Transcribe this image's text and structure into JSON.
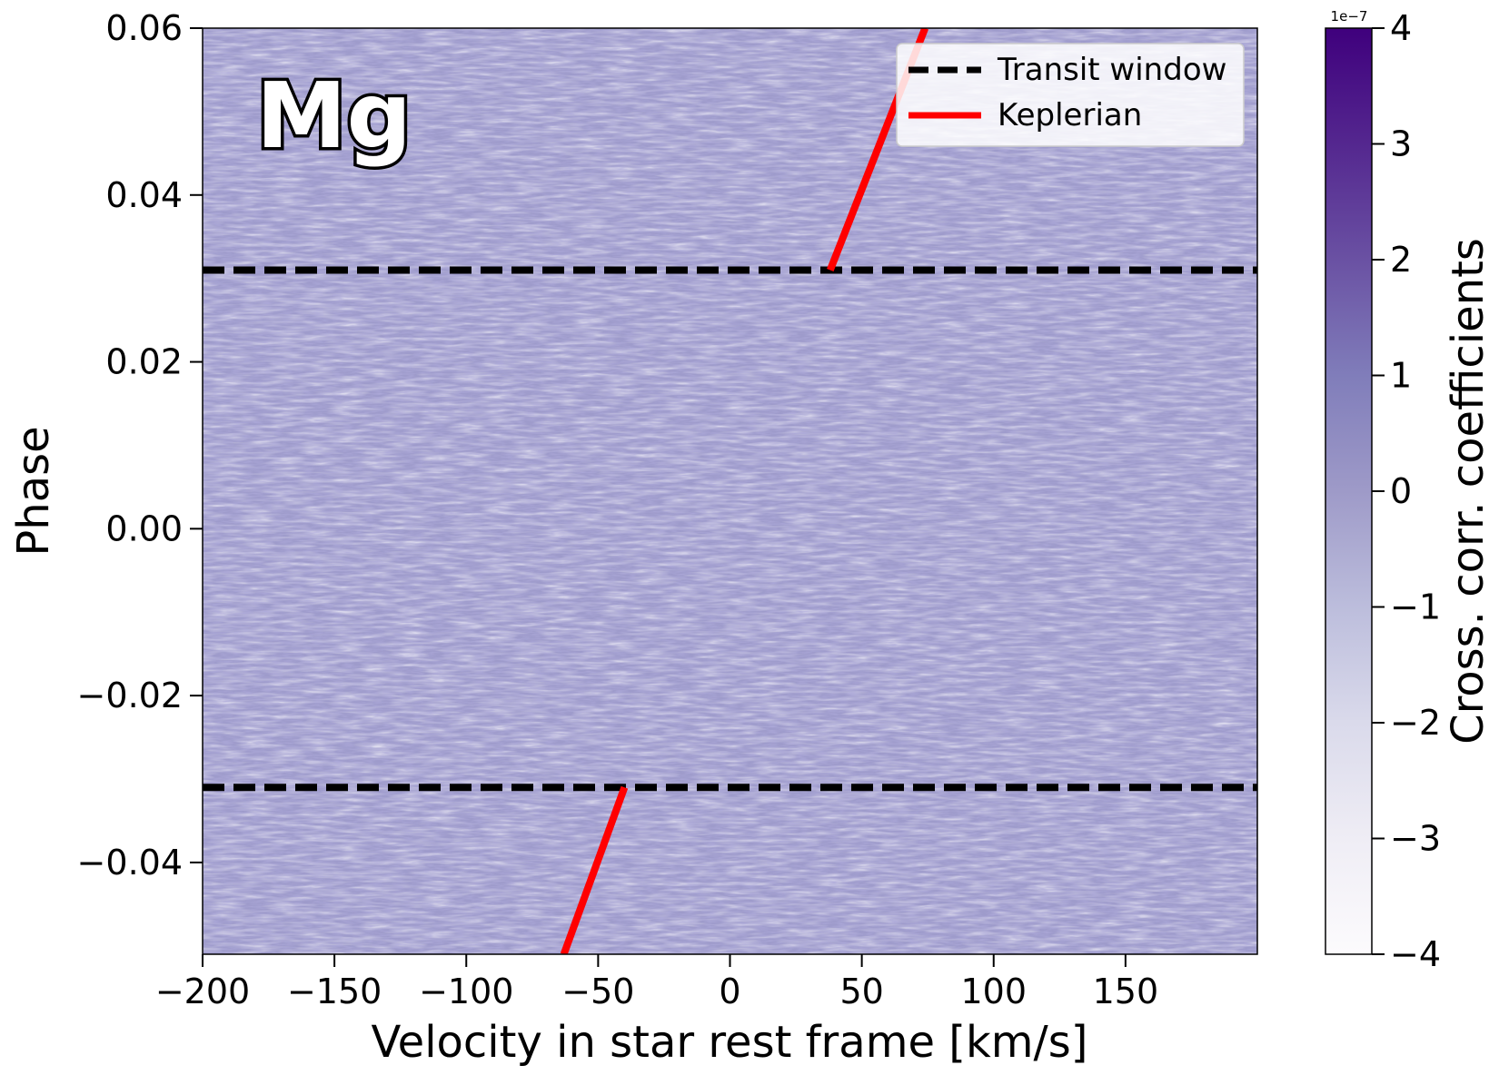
{
  "chart_data": {
    "type": "heatmap",
    "title": "",
    "panel_label": "Mg",
    "xlabel": "Velocity in star rest frame [km/s]",
    "ylabel": "Phase",
    "xlim": [
      -200,
      200
    ],
    "ylim": [
      -0.051,
      0.06
    ],
    "xticks": [
      -200,
      -150,
      -100,
      -50,
      0,
      50,
      100,
      150
    ],
    "xtick_labels": [
      "−200",
      "−150",
      "−100",
      "−50",
      "0",
      "50",
      "100",
      "150"
    ],
    "yticks": [
      -0.04,
      -0.02,
      0.0,
      0.02,
      0.04,
      0.06
    ],
    "ytick_labels": [
      "−0.04",
      "−0.02",
      "0.00",
      "0.02",
      "0.04",
      "0.06"
    ],
    "heatmap": {
      "colormap": "Purples",
      "description_values": "noise-like cross-correlation map, no clear signal",
      "value_range": [
        -4e-07,
        4e-07
      ]
    },
    "colorbar": {
      "label": "Cross. corr. coefficients",
      "multiplier": "1e−7",
      "range": [
        -4,
        4
      ],
      "ticks": [
        -4,
        -3,
        -2,
        -1,
        0,
        1,
        2,
        3,
        4
      ],
      "tick_labels": [
        "−4",
        "−3",
        "−2",
        "−1",
        "0",
        "1",
        "2",
        "3",
        "4"
      ]
    },
    "series": [
      {
        "name": "Transit window",
        "style": "dashed",
        "color": "#000000",
        "lines_phase": [
          -0.031,
          0.031
        ]
      },
      {
        "name": "Keplerian",
        "style": "solid",
        "color": "#ff0000",
        "segments": [
          {
            "x": [
              -63,
              -40
            ],
            "y": [
              -0.051,
              -0.031
            ]
          },
          {
            "x": [
              38,
              74
            ],
            "y": [
              0.031,
              0.06
            ]
          }
        ]
      }
    ],
    "legend_position": "top-right",
    "grid": false
  }
}
